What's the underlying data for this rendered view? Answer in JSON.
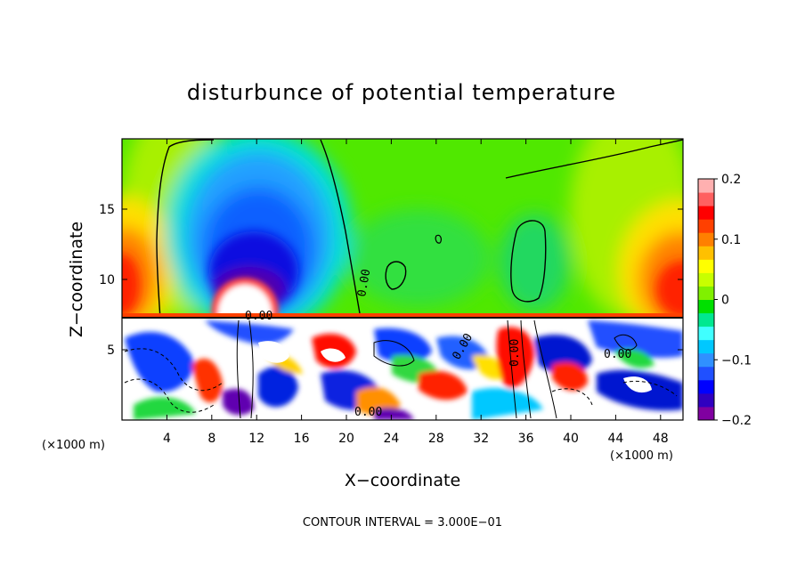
{
  "chart_data": {
    "type": "heatmap",
    "title": "disturbunce of potential temperature",
    "xlabel": "X−coordinate",
    "ylabel": "Z−coordinate",
    "x_unit_label": "(×1000 m)",
    "z_unit_label": "(×1000 m)",
    "footer": "CONTOUR INTERVAL = 3.000E−01",
    "xlim": [
      0,
      50
    ],
    "ylim": [
      0,
      20
    ],
    "x_ticks": [
      4,
      8,
      12,
      16,
      20,
      24,
      28,
      32,
      36,
      40,
      44,
      48
    ],
    "x_tick_labels": [
      "4",
      "8",
      "12",
      "16",
      "20",
      "24",
      "28",
      "32",
      "36",
      "40",
      "44",
      "48"
    ],
    "y_ticks": [
      5,
      10,
      15
    ],
    "y_tick_labels": [
      "5",
      "10",
      "15"
    ],
    "colorbar": {
      "range": [
        -0.2,
        0.2
      ],
      "tick_values": [
        -0.2,
        -0.1,
        0,
        0.1,
        0.2
      ],
      "tick_labels": [
        "−0.2",
        "−0.1",
        "0",
        "0.1",
        "0.2"
      ],
      "colors": [
        "#8000a0",
        "#3000c0",
        "#0000ff",
        "#2050ff",
        "#3090ff",
        "#00c8ff",
        "#40ffff",
        "#00e890",
        "#00e000",
        "#80f000",
        "#c8ff00",
        "#ffff00",
        "#ffc000",
        "#ff8000",
        "#ff4000",
        "#ff0000",
        "#ff6060",
        "#ffb0b0"
      ]
    },
    "tropopause_z": 7.3,
    "contour_labels": [
      "0.00",
      "0.00",
      "0.00",
      "0.00",
      "0.00",
      "0.00"
    ],
    "features": [
      {
        "name": "cold anomaly",
        "center": [
          11.5,
          14
        ],
        "value": -0.18
      },
      {
        "name": "warm lobe left",
        "center": [
          0,
          10
        ],
        "value": 0.2
      },
      {
        "name": "warm lobe right",
        "center": [
          50,
          10
        ],
        "value": 0.18
      },
      {
        "name": "warm anomaly",
        "center": [
          11,
          9
        ],
        "value": 0.25
      }
    ]
  }
}
